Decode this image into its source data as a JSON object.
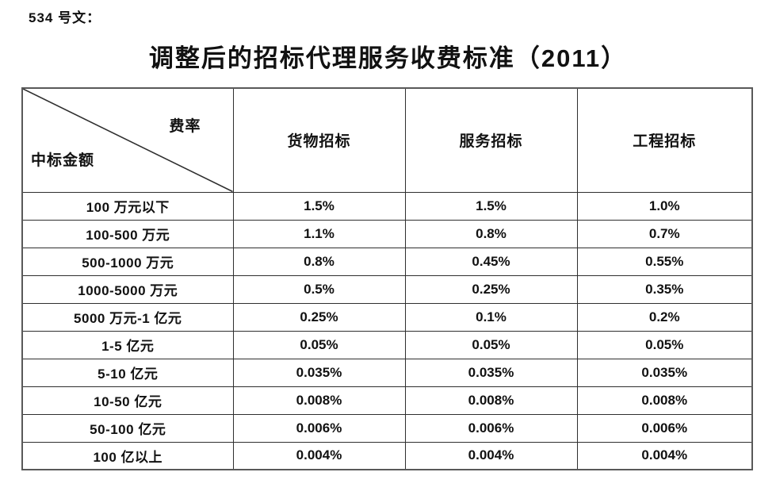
{
  "page": {
    "doc_label": "534 号文：",
    "title": "调整后的招标代理服务收费标准（2011）"
  },
  "table": {
    "corner": {
      "top_right": "费率",
      "bottom_left": "中标金额"
    },
    "columns": [
      "货物招标",
      "服务招标",
      "工程招标"
    ],
    "rows": [
      {
        "label": "100 万元以下",
        "values": [
          "1.5%",
          "1.5%",
          "1.0%"
        ]
      },
      {
        "label": "100-500 万元",
        "values": [
          "1.1%",
          "0.8%",
          "0.7%"
        ]
      },
      {
        "label": "500-1000 万元",
        "values": [
          "0.8%",
          "0.45%",
          "0.55%"
        ]
      },
      {
        "label": "1000-5000 万元",
        "values": [
          "0.5%",
          "0.25%",
          "0.35%"
        ]
      },
      {
        "label": "5000 万元-1 亿元",
        "values": [
          "0.25%",
          "0.1%",
          "0.2%"
        ]
      },
      {
        "label": "1-5 亿元",
        "values": [
          "0.05%",
          "0.05%",
          "0.05%"
        ]
      },
      {
        "label": "5-10 亿元",
        "values": [
          "0.035%",
          "0.035%",
          "0.035%"
        ]
      },
      {
        "label": "10-50 亿元",
        "values": [
          "0.008%",
          "0.008%",
          "0.008%"
        ]
      },
      {
        "label": "50-100 亿元",
        "values": [
          "0.006%",
          "0.006%",
          "0.006%"
        ]
      },
      {
        "label": "100 亿以上",
        "values": [
          "0.004%",
          "0.004%",
          "0.004%"
        ]
      }
    ]
  },
  "colors": {
    "background": "#ffffff",
    "text": "#111111",
    "border_inner": "#2f2f2f",
    "border_outer": "#595959"
  },
  "chart_data": {
    "type": "table",
    "title": "调整后的招标代理服务收费标准（2011）",
    "categories": [
      "100 万元以下",
      "100-500 万元",
      "500-1000 万元",
      "1000-5000 万元",
      "5000 万元-1 亿元",
      "1-5 亿元",
      "5-10 亿元",
      "10-50 亿元",
      "50-100 亿元",
      "100 亿以上"
    ],
    "series": [
      {
        "name": "货物招标",
        "values": [
          1.5,
          1.1,
          0.8,
          0.5,
          0.25,
          0.05,
          0.035,
          0.008,
          0.006,
          0.004
        ]
      },
      {
        "name": "服务招标",
        "values": [
          1.5,
          0.8,
          0.45,
          0.25,
          0.1,
          0.05,
          0.035,
          0.008,
          0.006,
          0.004
        ]
      },
      {
        "name": "工程招标",
        "values": [
          1.0,
          0.7,
          0.55,
          0.35,
          0.2,
          0.05,
          0.035,
          0.008,
          0.006,
          0.004
        ]
      }
    ],
    "unit": "%"
  }
}
